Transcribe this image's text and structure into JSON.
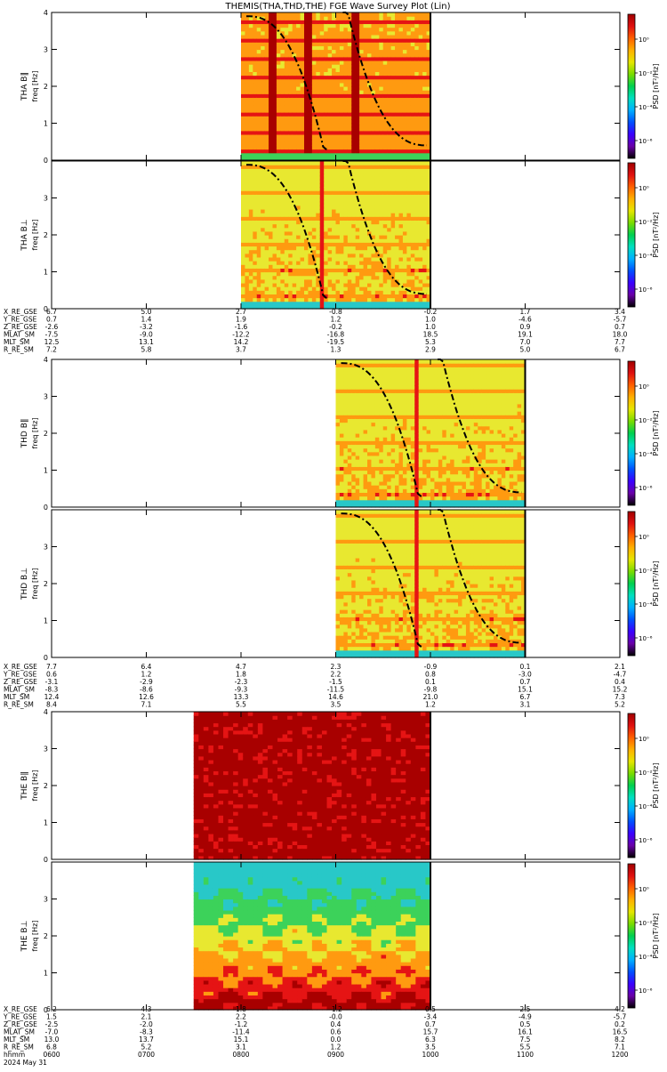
{
  "page": {
    "title": "THEMIS(THA,THD,THE)  FGE Wave Survey Plot (Lin)",
    "date_line": "2024 May 31",
    "time_row_label": "hhmm",
    "time_ticks": [
      "0600",
      "0700",
      "0800",
      "0900",
      "1000",
      "1100",
      "1200"
    ]
  },
  "colors": {
    "colorbar": [
      "#000000",
      "#6a00a8",
      "#3a00ff",
      "#0050ff",
      "#00b0ff",
      "#00e0c0",
      "#00d050",
      "#7adc00",
      "#e6e600",
      "#ffb000",
      "#ff6000",
      "#e01010",
      "#a00000"
    ],
    "spectrogram_low": "#3a8ed8",
    "spectrogram_mid": "#e8e830",
    "spectrogram_high": "#d00000",
    "curve": "#000000"
  },
  "chart_data": [
    {
      "type": "heatmap",
      "probe": "THA",
      "ylabel_top": "THA B∥",
      "ylabel_sub": "freq [Hz]",
      "component": "parallel",
      "ylim": [
        0,
        4
      ],
      "yticks": [
        "0",
        "1",
        "2",
        "3",
        "4"
      ],
      "xlim": [
        "0600",
        "1200"
      ],
      "data_coverage": [
        "0800",
        "1000"
      ],
      "zlabel": "PSD [nT²/Hz]",
      "ztick_labels": [
        "10⁰",
        "10⁻²",
        "10⁻⁴",
        "10⁻⁶"
      ],
      "fce_curves": "dash-dot harmonic gyrofrequency traces",
      "variant": "striped"
    },
    {
      "type": "heatmap",
      "probe": "THA",
      "ylabel_top": "THA B⊥",
      "ylabel_sub": "freq [Hz]",
      "component": "perpendicular",
      "ylim": [
        0,
        4
      ],
      "yticks": [
        "0",
        "1",
        "2",
        "3"
      ],
      "xlim": [
        "0600",
        "1200"
      ],
      "data_coverage": [
        "0800",
        "1000"
      ],
      "zlabel": "PSD [nT²/Hz]",
      "ztick_labels": [
        "10⁰",
        "10⁻²",
        "10⁻⁴",
        "10⁻⁶"
      ],
      "variant": "speckle"
    },
    {
      "type": "heatmap",
      "probe": "THD",
      "ylabel_top": "THD B∥",
      "ylabel_sub": "freq [Hz]",
      "component": "parallel",
      "ylim": [
        0,
        4
      ],
      "yticks": [
        "0",
        "1",
        "2",
        "3",
        "4"
      ],
      "xlim": [
        "0600",
        "1200"
      ],
      "data_coverage": [
        "0900",
        "1100"
      ],
      "zlabel": "PSD [nT²/Hz]",
      "ztick_labels": [
        "10⁰",
        "10⁻²",
        "10⁻⁴",
        "10⁻⁶"
      ],
      "variant": "speckle"
    },
    {
      "type": "heatmap",
      "probe": "THD",
      "ylabel_top": "THD B⊥",
      "ylabel_sub": "freq [Hz]",
      "component": "perpendicular",
      "ylim": [
        0,
        4
      ],
      "yticks": [
        "0",
        "1",
        "2",
        "3"
      ],
      "xlim": [
        "0600",
        "1200"
      ],
      "data_coverage": [
        "0900",
        "1100"
      ],
      "zlabel": "PSD [nT²/Hz]",
      "ztick_labels": [
        "10⁰",
        "10⁻²",
        "10⁻⁴",
        "10⁻⁶"
      ],
      "variant": "speckle"
    },
    {
      "type": "heatmap",
      "probe": "THE",
      "ylabel_top": "THE B∥",
      "ylabel_sub": "freq [Hz]",
      "component": "parallel",
      "ylim": [
        0,
        4
      ],
      "yticks": [
        "0",
        "1",
        "2",
        "3",
        "4"
      ],
      "xlim": [
        "0600",
        "1200"
      ],
      "data_coverage": [
        "0730",
        "1000"
      ],
      "zlabel": "PSD [nT²/Hz]",
      "ztick_labels": [
        "10⁰",
        "10⁻²",
        "10⁻⁴",
        "10⁻⁶"
      ],
      "variant": "saturated"
    },
    {
      "type": "heatmap",
      "probe": "THE",
      "ylabel_top": "THE B⊥",
      "ylabel_sub": "freq [Hz]",
      "component": "perpendicular",
      "ylim": [
        0,
        4
      ],
      "yticks": [
        "0",
        "1",
        "2",
        "3"
      ],
      "xlim": [
        "0600",
        "1200"
      ],
      "data_coverage": [
        "0730",
        "1000"
      ],
      "zlabel": "PSD [nT²/Hz]",
      "ztick_labels": [
        "10⁰",
        "10⁻²",
        "10⁻⁴",
        "10⁻⁶"
      ],
      "variant": "bubbles"
    }
  ],
  "ephemeris": [
    {
      "probe": "THA",
      "labels": [
        "X_RE_GSE",
        "Y_RE_GSE",
        "Z_RE_GSE",
        "MLAT_SM",
        "MLT_SM",
        "R_RE_SM"
      ],
      "rows": [
        [
          "6.7",
          "5.0",
          "2.7",
          "-0.8",
          "-0.2",
          "1.7",
          "3.4"
        ],
        [
          "0.7",
          "1.4",
          "1.9",
          "1.2",
          "1.0",
          "-4.6",
          "-5.7"
        ],
        [
          "-2.6",
          "-3.2",
          "-1.6",
          "-0.2",
          "1.0",
          "0.9",
          "0.7"
        ],
        [
          "-7.5",
          "-9.0",
          "-12.2",
          "-16.8",
          "18.5",
          "19.1",
          "18.0"
        ],
        [
          "12.5",
          "13.1",
          "14.2",
          "-19.5",
          "5.3",
          "7.0",
          "7.7"
        ],
        [
          "7.2",
          "5.8",
          "3.7",
          "1.3",
          "2.9",
          "5.0",
          "6.7"
        ]
      ]
    },
    {
      "probe": "THD",
      "labels": [
        "X_RE_GSE",
        "Y_RE_GSE",
        "Z_RE_GSE",
        "MLAT_SM",
        "MLT_SM",
        "R_RE_SM"
      ],
      "rows": [
        [
          "7.7",
          "6.4",
          "4.7",
          "2.3",
          "-0.9",
          "0.1",
          "2.1"
        ],
        [
          "0.6",
          "1.2",
          "1.8",
          "2.2",
          "0.8",
          "-3.0",
          "-4.7"
        ],
        [
          "-3.1",
          "-2.9",
          "-2.3",
          "-1.5",
          "0.1",
          "0.7",
          "0.4"
        ],
        [
          "-8.3",
          "-8.6",
          "-9.3",
          "-11.5",
          "-9.8",
          "15.1",
          "15.2"
        ],
        [
          "12.4",
          "12.6",
          "13.3",
          "14.6",
          "21.0",
          "6.7",
          "7.3"
        ],
        [
          "8.4",
          "7.1",
          "5.5",
          "3.5",
          "1.2",
          "3.1",
          "5.2"
        ]
      ]
    },
    {
      "probe": "THE",
      "labels": [
        "X_RE_GSE",
        "Y_RE_GSE",
        "Z_RE_GSE",
        "MLAT_SM",
        "MLT_SM",
        "R_RE_SM"
      ],
      "rows": [
        [
          "6.2",
          "4.3",
          "1.8",
          "-1.2",
          "0.5",
          "2.5",
          "4.2"
        ],
        [
          "1.5",
          "2.1",
          "2.2",
          "-0.0",
          "-3.4",
          "-4.9",
          "-5.7"
        ],
        [
          "-2.5",
          "-2.0",
          "-1.2",
          "0.4",
          "0.7",
          "0.5",
          "0.2"
        ],
        [
          "-7.0",
          "-8.3",
          "-11.4",
          "0.6",
          "15.7",
          "16.1",
          "16.5"
        ],
        [
          "13.0",
          "13.7",
          "15.1",
          "0.0",
          "6.3",
          "7.5",
          "8.2"
        ],
        [
          "6.8",
          "5.2",
          "3.1",
          "1.2",
          "3.5",
          "5.5",
          "7.1"
        ]
      ]
    }
  ]
}
